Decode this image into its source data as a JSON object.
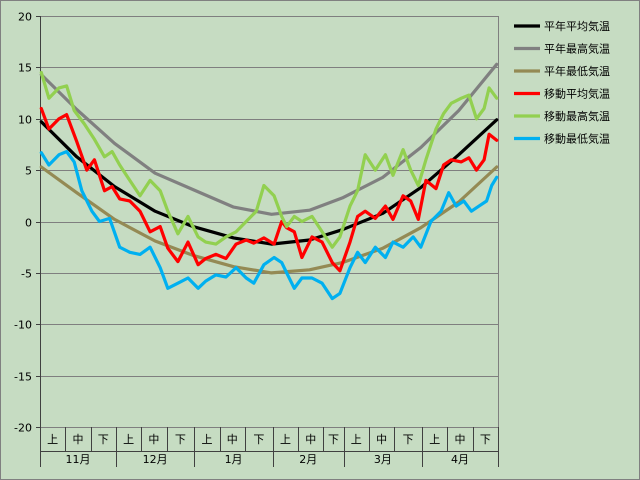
{
  "chart_data": {
    "type": "line",
    "title": "",
    "xlabel": "",
    "ylabel": "",
    "ylim": [
      -20,
      20
    ],
    "yticks": [
      20,
      15,
      10,
      5,
      0,
      -5,
      -10,
      -15,
      -20
    ],
    "grid": true,
    "legend_position": "top-right",
    "days": 181,
    "months": [
      {
        "label": "11月",
        "days": 30
      },
      {
        "label": "12月",
        "days": 31
      },
      {
        "label": "1月",
        "days": 31
      },
      {
        "label": "2月",
        "days": 28
      },
      {
        "label": "3月",
        "days": 31
      },
      {
        "label": "4月",
        "days": 30
      }
    ],
    "period_labels": [
      "上",
      "中",
      "下"
    ],
    "series": [
      {
        "name": "平年平均気温",
        "color": "#000000",
        "x": [
          1,
          15,
          30,
          46,
          61,
          77,
          92,
          107,
          120,
          136,
          151,
          166,
          181
        ],
        "y": [
          9.7,
          6.3,
          3.4,
          1.0,
          -0.5,
          -1.6,
          -2.2,
          -1.8,
          -0.8,
          0.8,
          3.3,
          6.5,
          9.9
        ]
      },
      {
        "name": "平年最高気温",
        "color": "#808080",
        "x": [
          1,
          15,
          30,
          46,
          61,
          77,
          92,
          107,
          120,
          136,
          151,
          166,
          181
        ],
        "y": [
          14.3,
          10.9,
          7.6,
          4.7,
          3.1,
          1.4,
          0.7,
          1.1,
          2.3,
          4.3,
          7.2,
          10.8,
          15.3
        ]
      },
      {
        "name": "平年最低気温",
        "color": "#948a54",
        "x": [
          1,
          15,
          30,
          46,
          61,
          77,
          92,
          107,
          120,
          136,
          151,
          166,
          181
        ],
        "y": [
          5.3,
          2.8,
          0.2,
          -1.9,
          -3.3,
          -4.4,
          -5.0,
          -4.7,
          -4.0,
          -2.6,
          -0.6,
          1.9,
          5.3
        ]
      },
      {
        "name": "移動平均気温",
        "color": "#ff0000",
        "x": [
          1,
          4,
          8,
          11,
          15,
          19,
          22,
          26,
          29,
          32,
          36,
          40,
          44,
          48,
          51,
          55,
          59,
          63,
          66,
          70,
          74,
          78,
          82,
          85,
          89,
          93,
          96,
          98,
          101,
          104,
          108,
          112,
          116,
          119,
          123,
          126,
          129,
          133,
          137,
          140,
          144,
          147,
          150,
          153,
          157,
          160,
          163,
          167,
          170,
          173,
          176,
          178,
          181
        ],
        "y": [
          11.0,
          9.0,
          10.0,
          10.4,
          7.8,
          5.0,
          6.0,
          3.0,
          3.4,
          2.2,
          2.0,
          1.0,
          -1.0,
          -0.5,
          -2.6,
          -3.9,
          -2.0,
          -4.2,
          -3.6,
          -3.2,
          -3.6,
          -2.2,
          -1.8,
          -2.1,
          -1.6,
          -2.2,
          0.0,
          -0.6,
          -1.0,
          -3.5,
          -1.5,
          -2.0,
          -4.0,
          -4.8,
          -2.0,
          0.5,
          1.0,
          0.3,
          1.5,
          0.2,
          2.5,
          2.0,
          0.2,
          4.0,
          3.2,
          5.5,
          6.0,
          5.8,
          6.2,
          5.0,
          6.0,
          8.5,
          7.9
        ]
      },
      {
        "name": "移動最高気温",
        "color": "#92d050",
        "x": [
          1,
          4,
          8,
          11,
          14,
          18,
          22,
          26,
          29,
          32,
          36,
          40,
          44,
          48,
          51,
          55,
          59,
          63,
          66,
          70,
          74,
          78,
          82,
          86,
          89,
          93,
          96,
          98,
          101,
          104,
          108,
          112,
          116,
          119,
          123,
          126,
          129,
          133,
          137,
          140,
          144,
          147,
          150,
          153,
          157,
          160,
          163,
          167,
          170,
          173,
          176,
          178,
          181
        ],
        "y": [
          14.5,
          12.0,
          13.0,
          13.2,
          10.8,
          9.5,
          8.0,
          6.3,
          6.8,
          5.5,
          4.0,
          2.5,
          4.0,
          3.0,
          1.0,
          -1.2,
          0.5,
          -1.5,
          -2.0,
          -2.2,
          -1.5,
          -1.0,
          0.0,
          1.0,
          3.5,
          2.5,
          0.5,
          -0.5,
          0.5,
          0.0,
          0.5,
          -1.0,
          -2.5,
          -1.5,
          1.5,
          3.0,
          6.5,
          5.0,
          6.5,
          4.5,
          7.0,
          5.0,
          3.5,
          6.0,
          9.0,
          10.5,
          11.5,
          12.0,
          12.3,
          10.0,
          11.0,
          13.0,
          12.0
        ]
      },
      {
        "name": "移動最低気温",
        "color": "#00b0f0",
        "x": [
          1,
          4,
          8,
          11,
          14,
          17,
          21,
          24,
          28,
          32,
          36,
          40,
          44,
          48,
          51,
          55,
          59,
          63,
          66,
          70,
          74,
          78,
          82,
          85,
          89,
          93,
          96,
          98,
          101,
          104,
          108,
          112,
          116,
          119,
          123,
          126,
          129,
          133,
          137,
          140,
          144,
          148,
          151,
          155,
          159,
          162,
          165,
          168,
          171,
          174,
          177,
          179,
          181
        ],
        "y": [
          6.7,
          5.5,
          6.5,
          6.8,
          5.8,
          3.0,
          1.0,
          0.0,
          0.3,
          -2.5,
          -3.0,
          -3.2,
          -2.5,
          -4.5,
          -6.5,
          -6.0,
          -5.5,
          -6.5,
          -5.8,
          -5.2,
          -5.4,
          -4.5,
          -5.5,
          -6.0,
          -4.2,
          -3.5,
          -4.0,
          -5.0,
          -6.5,
          -5.5,
          -5.5,
          -6.0,
          -7.5,
          -7.0,
          -4.5,
          -3.0,
          -4.0,
          -2.5,
          -3.5,
          -2.0,
          -2.5,
          -1.5,
          -2.5,
          0.0,
          1.0,
          2.8,
          1.5,
          2.0,
          1.0,
          1.5,
          2.0,
          3.5,
          4.3
        ]
      }
    ]
  }
}
